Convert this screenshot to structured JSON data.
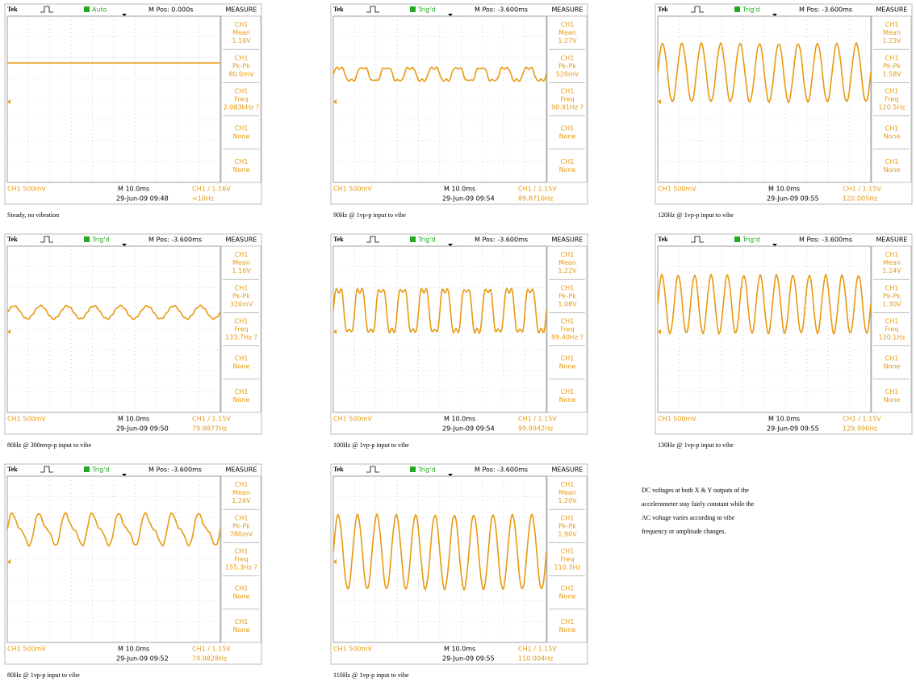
{
  "panels": [
    {
      "brand": "Tek",
      "status": "Auto",
      "mpos": "M Pos: 0.000s",
      "menu_title": "MEASURE",
      "measure": [
        [
          "CH1",
          "Mean",
          "1.16V"
        ],
        [
          "CH1",
          "Pk-Pk",
          "80.0mV"
        ],
        [
          "CH1",
          "Freq",
          "2.083kHz ?"
        ],
        [
          "CH1",
          "None"
        ],
        [
          "CH1",
          "None"
        ]
      ],
      "scale": "CH1  500mV",
      "timebase": "M 10.0ms",
      "trigger": "CH1 / 1.16V",
      "date": "29-Jun-09 09:48",
      "freq": "<10Hz",
      "caption": "Steady, no vibration"
    },
    {
      "brand": "Tek",
      "status": "Trig'd",
      "mpos": "M Pos: -3.600ms",
      "menu_title": "MEASURE",
      "measure": [
        [
          "CH1",
          "Mean",
          "1.27V"
        ],
        [
          "CH1",
          "Pk-Pk",
          "520mV"
        ],
        [
          "CH1",
          "Freq",
          "90.91Hz ?"
        ],
        [
          "CH1",
          "None"
        ],
        [
          "CH1",
          "None"
        ]
      ],
      "scale": "CH1  500mV",
      "timebase": "M 10.0ms",
      "trigger": "CH1 / 1.15V",
      "date": "29-Jun-09 09:54",
      "freq": "89.8716Hz",
      "caption": "90Hz @ 1vp-p input to vibe"
    },
    {
      "brand": "Tek",
      "status": "Trig'd",
      "mpos": "M Pos: -3.600ms",
      "menu_title": "MEASURE",
      "measure": [
        [
          "CH1",
          "Mean",
          "1.23V"
        ],
        [
          "CH1",
          "Pk-Pk",
          "1.58V"
        ],
        [
          "CH1",
          "Freq",
          "120.5Hz"
        ],
        [
          "CH1",
          "None"
        ],
        [
          "CH1",
          "None"
        ]
      ],
      "scale": "CH1  500mV",
      "timebase": "M 10.0ms",
      "trigger": "CH1 / 1.15V",
      "date": "29-Jun-09 09:55",
      "freq": "120.005Hz",
      "caption": "120Hz @ 1vp-p input to vibe"
    },
    {
      "brand": "Tek",
      "status": "Trig'd",
      "mpos": "M Pos: -3.600ms",
      "menu_title": "MEASURE",
      "measure": [
        [
          "CH1",
          "Mean",
          "1.16V"
        ],
        [
          "CH1",
          "Pk-Pk",
          "320mV"
        ],
        [
          "CH1",
          "Freq",
          "133.7Hz ?"
        ],
        [
          "CH1",
          "None"
        ],
        [
          "CH1",
          "None"
        ]
      ],
      "scale": "CH1  500mV",
      "timebase": "M 10.0ms",
      "trigger": "CH1 / 1.15V",
      "date": "29-Jun-09 09:50",
      "freq": "79.9877Hz",
      "caption": "80Hz @ 300mvp-p input to vibe"
    },
    {
      "brand": "Tek",
      "status": "Trig'd",
      "mpos": "M Pos: -3.600ms",
      "menu_title": "MEASURE",
      "measure": [
        [
          "CH1",
          "Mean",
          "1.22V"
        ],
        [
          "CH1",
          "Pk-Pk",
          "1.08V"
        ],
        [
          "CH1",
          "Freq",
          "99.40Hz ?"
        ],
        [
          "CH1",
          "None"
        ],
        [
          "CH1",
          "None"
        ]
      ],
      "scale": "CH1  500mV",
      "timebase": "M 10.0ms",
      "trigger": "CH1 / 1.15V",
      "date": "29-Jun-09 09:54",
      "freq": "99.9942Hz",
      "caption": "100Hz @ 1vp-p input to vibe"
    },
    {
      "brand": "Tek",
      "status": "Trig'd",
      "mpos": "M Pos: -3.600ms",
      "menu_title": "MEASURE",
      "measure": [
        [
          "CH1",
          "Mean",
          "1.24V"
        ],
        [
          "CH1",
          "Pk-Pk",
          "1.30V"
        ],
        [
          "CH1",
          "Freq",
          "130.1Hz"
        ],
        [
          "CH1",
          "None"
        ],
        [
          "CH1",
          "None"
        ]
      ],
      "scale": "CH1  500mV",
      "timebase": "M 10.0ms",
      "trigger": "CH1 / 1.15V",
      "date": "29-Jun-09 09:55",
      "freq": "129.996Hz",
      "caption": "130Hz @ 1vp-p input to vibe"
    },
    {
      "brand": "Tek",
      "status": "Trig'd",
      "mpos": "M Pos: -3.600ms",
      "menu_title": "MEASURE",
      "measure": [
        [
          "CH1",
          "Mean",
          "1.26V"
        ],
        [
          "CH1",
          "Pk-Pk",
          "780mV"
        ],
        [
          "CH1",
          "Freq",
          "155.3Hz ?"
        ],
        [
          "CH1",
          "None"
        ],
        [
          "CH1",
          "None"
        ]
      ],
      "scale": "CH1  500mV",
      "timebase": "M 10.0ms",
      "trigger": "CH1 / 1.15V",
      "date": "29-Jun-09 09:52",
      "freq": "79.9828Hz",
      "caption": "80Hz @ 1vp-p input to vibe"
    },
    {
      "brand": "Tek",
      "status": "Trig'd",
      "mpos": "M Pos: -3.600ms",
      "menu_title": "MEASURE",
      "measure": [
        [
          "CH1",
          "Mean",
          "1.20V"
        ],
        [
          "CH1",
          "Pk-Pk",
          "1.90V"
        ],
        [
          "CH1",
          "Freq",
          "110.3Hz"
        ],
        [
          "CH1",
          "None"
        ],
        [
          "CH1",
          "None"
        ]
      ],
      "scale": "CH1  500mV",
      "timebase": "M 10.0ms",
      "trigger": "CH1 / 1.15V",
      "date": "29-Jun-09 09:55",
      "freq": "110.004Hz",
      "caption": "110Hz @ 1vp-p input to vibe"
    }
  ],
  "note": [
    "DC voltages at both X & Y outputs of the",
    "accelerometer stay fairly constant while the",
    "AC voltage varies according to vibe",
    "frequency or amplitude changes."
  ]
}
